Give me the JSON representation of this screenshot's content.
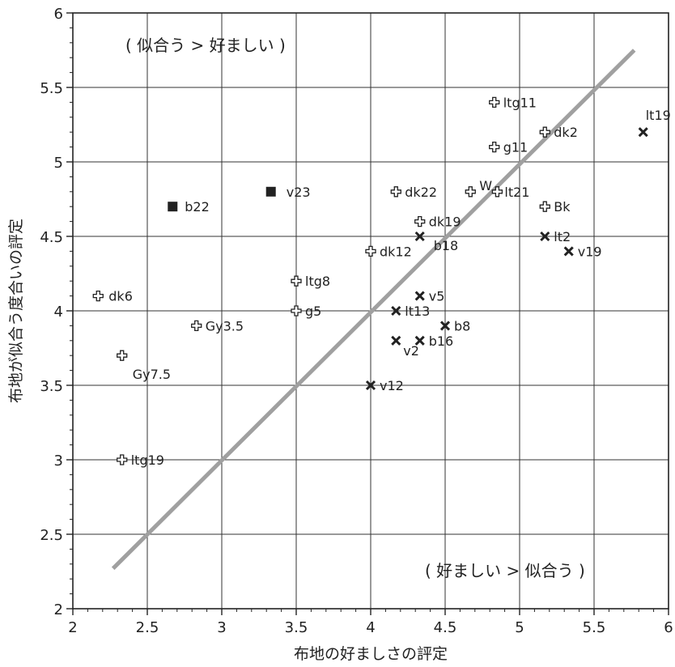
{
  "chart_data": {
    "type": "scatter",
    "xlabel": "布地の好ましさの評定",
    "ylabel": "布地が似合う度合いの評定",
    "xlim": [
      2,
      6
    ],
    "ylim": [
      2,
      6
    ],
    "x_ticks": [
      "2",
      "2.5",
      "3",
      "3.5",
      "4",
      "4.5",
      "5",
      "5.5",
      "6"
    ],
    "y_ticks": [
      "2",
      "2.5",
      "3",
      "3.5",
      "4",
      "4.5",
      "5",
      "5.5",
      "6"
    ],
    "grid": true,
    "annotations": {
      "upper_left": "( 似合う > 好ましい )",
      "lower_right": "( 好ましい > 似合う )"
    },
    "reference_line": {
      "x": [
        2.27,
        5.77
      ],
      "y": [
        2.27,
        5.75
      ],
      "color": "#a0a0a0"
    },
    "points": [
      {
        "label": "dk6",
        "x": 2.17,
        "y": 4.1,
        "marker": "cross-open"
      },
      {
        "label": "Gy7.5",
        "x": 2.33,
        "y": 3.7,
        "marker": "cross-open"
      },
      {
        "label": "ltg19",
        "x": 2.33,
        "y": 3.0,
        "marker": "cross-open"
      },
      {
        "label": "Gy3.5",
        "x": 2.83,
        "y": 3.9,
        "marker": "cross-open"
      },
      {
        "label": "ltg8",
        "x": 3.5,
        "y": 4.2,
        "marker": "cross-open"
      },
      {
        "label": "g5",
        "x": 3.5,
        "y": 4.0,
        "marker": "cross-open"
      },
      {
        "label": "dk12",
        "x": 4.0,
        "y": 4.4,
        "marker": "cross-open"
      },
      {
        "label": "dk22",
        "x": 4.17,
        "y": 4.8,
        "marker": "cross-open"
      },
      {
        "label": "dk19",
        "x": 4.33,
        "y": 4.6,
        "marker": "cross-open"
      },
      {
        "label": "W",
        "x": 4.67,
        "y": 4.8,
        "marker": "cross-open"
      },
      {
        "label": "ltg11",
        "x": 4.83,
        "y": 5.4,
        "marker": "cross-open"
      },
      {
        "label": "g11",
        "x": 4.83,
        "y": 5.1,
        "marker": "cross-open"
      },
      {
        "label": "lt21",
        "x": 4.85,
        "y": 4.8,
        "marker": "cross-open"
      },
      {
        "label": "dk2",
        "x": 5.17,
        "y": 5.2,
        "marker": "cross-open"
      },
      {
        "label": "Bk",
        "x": 5.17,
        "y": 4.7,
        "marker": "cross-open"
      },
      {
        "label": "b22",
        "x": 2.67,
        "y": 4.7,
        "marker": "square"
      },
      {
        "label": "v23",
        "x": 3.33,
        "y": 4.8,
        "marker": "square"
      },
      {
        "label": "b18",
        "x": 4.33,
        "y": 4.5,
        "marker": "x"
      },
      {
        "label": "v5",
        "x": 4.33,
        "y": 4.1,
        "marker": "x"
      },
      {
        "label": "lt13",
        "x": 4.17,
        "y": 4.0,
        "marker": "x"
      },
      {
        "label": "b8",
        "x": 4.5,
        "y": 3.9,
        "marker": "x"
      },
      {
        "label": "b16",
        "x": 4.33,
        "y": 3.8,
        "marker": "x"
      },
      {
        "label": "v2",
        "x": 4.17,
        "y": 3.8,
        "marker": "x"
      },
      {
        "label": "v12",
        "x": 4.0,
        "y": 3.5,
        "marker": "x"
      },
      {
        "label": "lt2",
        "x": 5.17,
        "y": 4.5,
        "marker": "x"
      },
      {
        "label": "v19",
        "x": 5.33,
        "y": 4.4,
        "marker": "x"
      },
      {
        "label": "lt19",
        "x": 5.83,
        "y": 5.2,
        "marker": "x"
      }
    ]
  }
}
